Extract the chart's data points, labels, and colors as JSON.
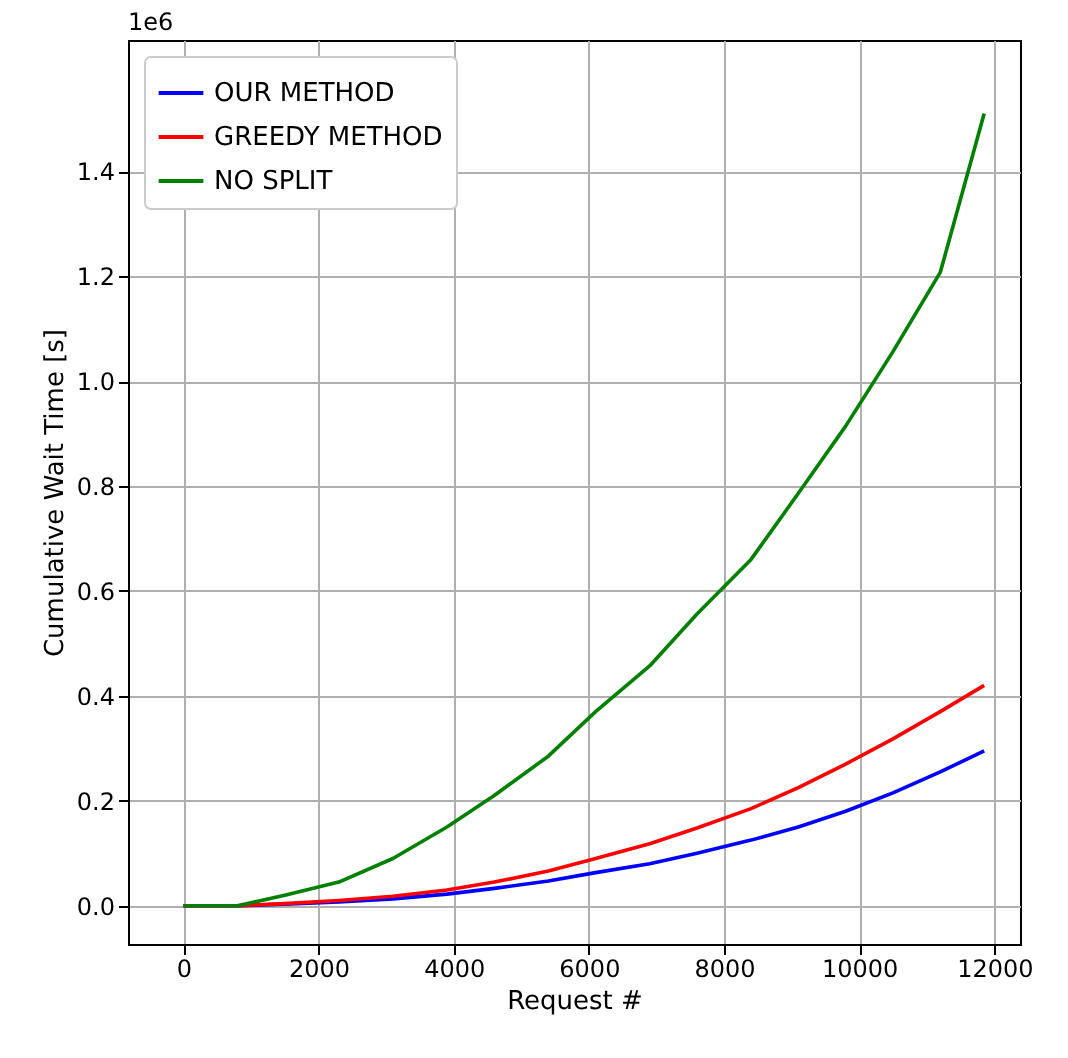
{
  "chart_data": {
    "type": "line",
    "xlabel": "Request #",
    "ylabel": "Cumulative Wait Time [s]",
    "annotations": [
      "1e6"
    ],
    "x": [
      0,
      800,
      1500,
      2300,
      3100,
      3900,
      4600,
      5400,
      6100,
      6900,
      7600,
      8400,
      9100,
      9800,
      10500,
      11200,
      11850
    ],
    "series": [
      {
        "name": "OUR METHOD",
        "color": "#0000ff",
        "values": [
          0,
          0,
          0.003,
          0.007,
          0.013,
          0.022,
          0.033,
          0.047,
          0.063,
          0.08,
          0.1,
          0.125,
          0.15,
          0.18,
          0.215,
          0.255,
          0.295
        ]
      },
      {
        "name": "GREEDY METHOD",
        "color": "#ff0000",
        "values": [
          0,
          0,
          0.004,
          0.01,
          0.018,
          0.03,
          0.045,
          0.066,
          0.09,
          0.118,
          0.148,
          0.185,
          0.225,
          0.27,
          0.318,
          0.37,
          0.42
        ]
      },
      {
        "name": "NO SPLIT",
        "color": "#008000",
        "values": [
          0,
          0,
          0.02,
          0.045,
          0.09,
          0.15,
          0.21,
          0.285,
          0.37,
          0.457,
          0.556,
          0.66,
          0.786,
          0.914,
          1.056,
          1.207,
          1.51
        ]
      }
    ],
    "xlim": [
      -820,
      12380
    ],
    "ylim": [
      -0.073,
      1.65
    ],
    "xticks": [
      0,
      2000,
      4000,
      6000,
      8000,
      10000,
      12000
    ],
    "yticks": [
      {
        "value": 0,
        "label": "0.0"
      },
      {
        "value": 0.2,
        "label": "0.2"
      },
      {
        "value": 0.4,
        "label": "0.4"
      },
      {
        "value": 0.6,
        "label": "0.6"
      },
      {
        "value": 0.8,
        "label": "0.8"
      },
      {
        "value": 1,
        "label": "1.0"
      },
      {
        "value": 1.2,
        "label": "1.2"
      },
      {
        "value": 1.4,
        "label": "1.4"
      }
    ],
    "grid": true,
    "legend": "top left"
  }
}
